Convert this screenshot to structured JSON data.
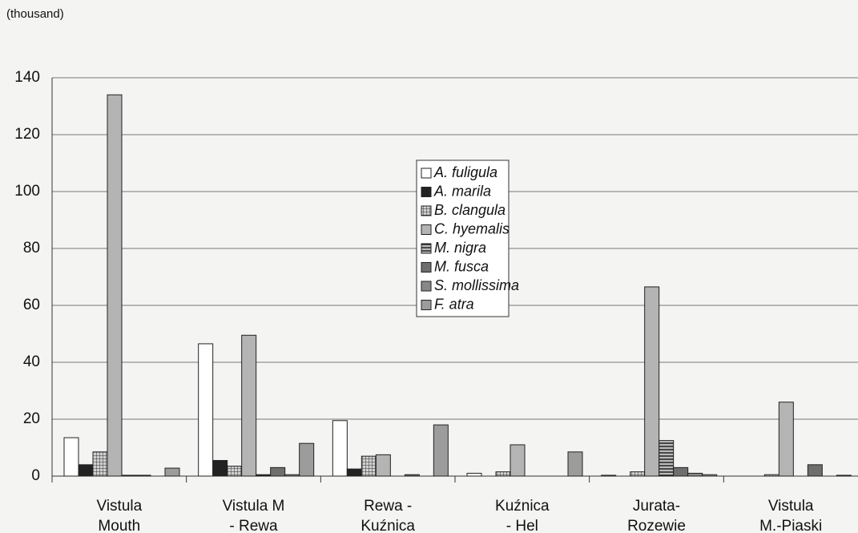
{
  "chart_data": {
    "type": "bar",
    "y_label": "(thousand)",
    "categories": [
      [
        "Vistula",
        "Mouth"
      ],
      [
        "Vistula M",
        "- Rewa"
      ],
      [
        "Rewa -",
        "Kuźnica"
      ],
      [
        "Kuźnica",
        "- Hel"
      ],
      [
        "Jurata-",
        "Rozewie"
      ],
      [
        "Vistula",
        "M.-Piaski"
      ]
    ],
    "series": [
      {
        "name": "A. fuligula",
        "color": "#ffffff",
        "values": [
          13.5,
          46.5,
          19.5,
          1,
          0.3,
          0
        ]
      },
      {
        "name": "A. marila",
        "color": "#222222",
        "values": [
          4,
          5.5,
          2.5,
          0,
          0,
          0
        ]
      },
      {
        "name": "B. clangula",
        "color": "#9a9a9a",
        "pattern": "grid",
        "values": [
          8.5,
          3.5,
          7,
          1.5,
          1.5,
          0.5
        ]
      },
      {
        "name": "C. hyemalis",
        "color": "#b4b4b4",
        "values": [
          134,
          49.5,
          7.5,
          11,
          66.5,
          26
        ]
      },
      {
        "name": "M. nigra",
        "color": "#8a8a8a",
        "pattern": "horizontal",
        "values": [
          0.3,
          0.5,
          0,
          0,
          12.5,
          0
        ]
      },
      {
        "name": "M. fusca",
        "color": "#6e6e6e",
        "values": [
          0.3,
          3,
          0.5,
          0,
          3,
          4
        ]
      },
      {
        "name": "S. mollissima",
        "color": "#888888",
        "values": [
          0,
          0.5,
          0,
          0,
          1,
          0
        ]
      },
      {
        "name": "F. atra",
        "color": "#9c9c9c",
        "values": [
          2.8,
          11.5,
          18,
          8.5,
          0.5,
          0.3
        ]
      }
    ],
    "ylim": [
      0,
      140
    ],
    "yticks": [
      0,
      20,
      40,
      60,
      80,
      100,
      120,
      140
    ],
    "grid": true
  }
}
